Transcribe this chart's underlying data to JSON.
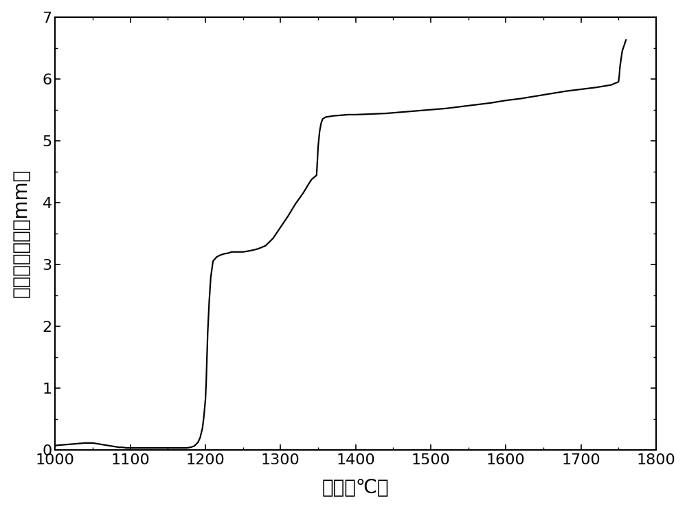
{
  "title": "",
  "xlabel": "温度（℃）",
  "ylabel": "累计烧结收缩（mm）",
  "xlim": [
    1000,
    1800
  ],
  "ylim": [
    0,
    7
  ],
  "xticks": [
    1000,
    1100,
    1200,
    1300,
    1400,
    1500,
    1600,
    1700,
    1800
  ],
  "yticks": [
    0,
    1,
    2,
    3,
    4,
    5,
    6,
    7
  ],
  "line_color": "#000000",
  "line_width": 1.6,
  "background_color": "#ffffff",
  "x": [
    1000,
    1010,
    1020,
    1030,
    1040,
    1050,
    1055,
    1060,
    1065,
    1070,
    1075,
    1080,
    1085,
    1090,
    1095,
    1100,
    1105,
    1110,
    1115,
    1120,
    1125,
    1130,
    1135,
    1140,
    1145,
    1150,
    1155,
    1160,
    1165,
    1170,
    1175,
    1180,
    1185,
    1190,
    1193,
    1196,
    1198,
    1200,
    1201,
    1202,
    1203,
    1205,
    1207,
    1210,
    1215,
    1220,
    1225,
    1230,
    1235,
    1240,
    1250,
    1260,
    1270,
    1280,
    1290,
    1300,
    1310,
    1320,
    1330,
    1340,
    1342,
    1344,
    1346,
    1348,
    1350,
    1352,
    1354,
    1356,
    1360,
    1370,
    1380,
    1390,
    1400,
    1420,
    1440,
    1460,
    1480,
    1500,
    1520,
    1540,
    1560,
    1580,
    1600,
    1620,
    1640,
    1660,
    1680,
    1700,
    1720,
    1730,
    1740,
    1742,
    1744,
    1746,
    1748,
    1750,
    1751,
    1752,
    1755,
    1760
  ],
  "y": [
    0.07,
    0.08,
    0.09,
    0.1,
    0.11,
    0.11,
    0.1,
    0.09,
    0.08,
    0.07,
    0.06,
    0.05,
    0.04,
    0.04,
    0.03,
    0.03,
    0.03,
    0.03,
    0.03,
    0.03,
    0.03,
    0.03,
    0.03,
    0.03,
    0.03,
    0.03,
    0.03,
    0.03,
    0.03,
    0.03,
    0.03,
    0.04,
    0.06,
    0.12,
    0.2,
    0.35,
    0.55,
    0.82,
    1.1,
    1.5,
    1.9,
    2.4,
    2.78,
    3.05,
    3.12,
    3.15,
    3.17,
    3.18,
    3.2,
    3.2,
    3.2,
    3.22,
    3.25,
    3.3,
    3.42,
    3.6,
    3.78,
    3.98,
    4.15,
    4.35,
    4.38,
    4.4,
    4.42,
    4.44,
    4.9,
    5.15,
    5.28,
    5.35,
    5.38,
    5.4,
    5.41,
    5.42,
    5.42,
    5.43,
    5.44,
    5.46,
    5.48,
    5.5,
    5.52,
    5.55,
    5.58,
    5.61,
    5.65,
    5.68,
    5.72,
    5.76,
    5.8,
    5.83,
    5.86,
    5.88,
    5.9,
    5.91,
    5.92,
    5.93,
    5.94,
    5.95,
    6.05,
    6.2,
    6.45,
    6.63
  ]
}
